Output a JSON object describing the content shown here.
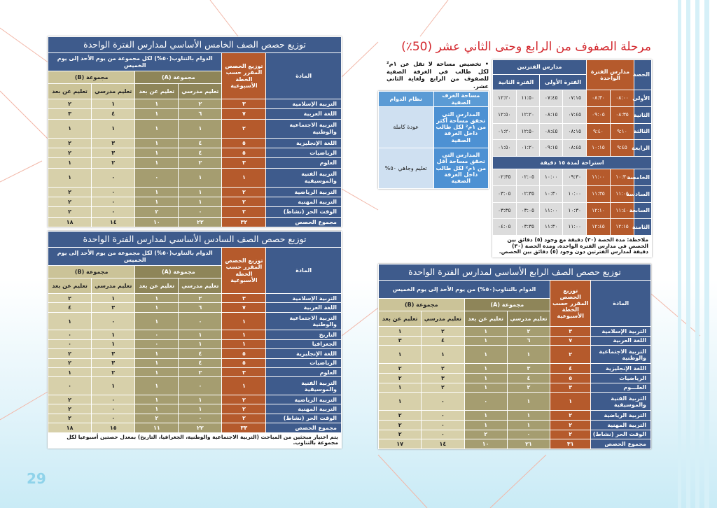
{
  "page": {
    "title": "مرحلة الصفوف من الرابع وحتى الثاني عشر (50٪)",
    "bullet": "تخصيص مساحة لا تقل عن ١م² لكل طالب في الغرفة الصفية للصفوف من الرابع ولغاية الثاني عشر.",
    "page_number": "29"
  },
  "area_table": {
    "headers": [
      "مساحة الغرف الصفية",
      "نظام الدوام"
    ],
    "rows": [
      {
        "area": "المدارس التي تحقق مساحة أكثر من ١م² لكل طالب داخل الغرفة الصفية",
        "system": "عودة كاملة"
      },
      {
        "area": "المدارس التي تحقق مساحة أقل من ١م² لكل طالب داخل الغرفة الصفية",
        "system": "تعليم وجاهي ٥٠%"
      }
    ]
  },
  "schedule": {
    "period_label": "الحصة",
    "single_label": "مدارس الفترة الواحدة",
    "double_label": "مدارس الفترتين",
    "first_label": "الفترة الأولى",
    "second_label": "الفترة الثانية",
    "break_label": "استراحة لمدة ١٥ دقيقة",
    "rows": [
      {
        "name": "الأولى",
        "s": [
          "٠٨:٠٠",
          "٠٨:٣٠"
        ],
        "f": [
          "٠٧:١٥",
          "٠٧:٤٥"
        ],
        "n": [
          "١١:٥٠",
          "١٢:٢٠"
        ]
      },
      {
        "name": "الثانية",
        "s": [
          "٠٨:٣٥",
          "٠٩:٠٥"
        ],
        "f": [
          "٠٧:٤٥",
          "٠٨:١٥"
        ],
        "n": [
          "١٢:٢٠",
          "١٢:٥٠"
        ]
      },
      {
        "name": "الثالثة",
        "s": [
          "٩:١٠",
          "٩:٤٠"
        ],
        "f": [
          "٠٨:١٥",
          "٠٨:٤٥"
        ],
        "n": [
          "١٢:٥٠",
          "٠١:٢٠"
        ]
      },
      {
        "name": "الرابعة",
        "s": [
          "٩:٤٥",
          "١٠:١٥"
        ],
        "f": [
          "٠٨:٤٥",
          "٠٩:١٥"
        ],
        "n": [
          "٠١:٢٠",
          "٠١:٥٠"
        ]
      },
      {
        "name": "الخامسة",
        "s": [
          "١٠:٣٠",
          "١١:٠٠"
        ],
        "f": [
          "٠٩:٣٠",
          "١٠:٠٠"
        ],
        "n": [
          "٠٢:٠٥",
          "٠٢:٣٥"
        ]
      },
      {
        "name": "السادسة",
        "s": [
          "١١:٠٥",
          "١١:٣٥"
        ],
        "f": [
          "١٠:٠٠",
          "١٠:٣٠"
        ],
        "n": [
          "٠٢:٣٥",
          "٠٣:٠٥"
        ]
      },
      {
        "name": "السابعة",
        "s": [
          "١١:٤٠",
          "١٢:١٠"
        ],
        "f": [
          "١٠:٣٠",
          "١١:٠٠"
        ],
        "n": [
          "٠٣:٠٥",
          "٠٣:٣٥"
        ]
      },
      {
        "name": "الثامنة",
        "s": [
          "١٢:١٥",
          "١٢:٤٥"
        ],
        "f": [
          "١١:٠٠",
          "١١:٣٠"
        ],
        "n": [
          "٠٣:٣٥",
          "٠٤:٠٥"
        ]
      }
    ],
    "note": "ملاحظة: مدة الحصة (٣٠) دقيقة مع وجود (٥) دقائق بين الحصص في مدارس الفترة الواحدة. ومدة الحصة (٣٠) دقيقة لمدارس الفترتين دون وجود (٥) دقائق بين الحصص."
  },
  "grade5": {
    "title": "توزيع حصص الصف الخامس الأساسي لمدارس الفترة الواحدة",
    "hours_label": "الدوام بالتناوب(٥٠%) لكل مجموعة من يوم الأحد إلى يوم الخميس",
    "subject_label": "المادة",
    "total_label": "توزيع الحصص المقرر حسب الخطة الأسبوعية",
    "group_a": "مجموعة (A)",
    "group_b": "مجموعة (B)",
    "school_label": "تعليم مدرسي",
    "remote_label": "تعليم عن بعد",
    "rows": [
      [
        "التربية الإسلامية",
        "٣",
        "٢",
        "١",
        "١",
        "٢"
      ],
      [
        "اللغة العربية",
        "٧",
        "٦",
        "١",
        "٤",
        "٣"
      ],
      [
        "التربية الاجتماعية والوطنية",
        "٢",
        "١",
        "١",
        "١",
        "١"
      ],
      [
        "اللغة الإنجليزية",
        "٥",
        "٤",
        "١",
        "٣",
        "٢"
      ],
      [
        "الرياضيات",
        "٥",
        "٤",
        "١",
        "٣",
        "٢"
      ],
      [
        "العلوم",
        "٣",
        "٢",
        "١",
        "٢",
        "١"
      ],
      [
        "التربية الفنية والموسيقية",
        "١",
        "١",
        "٠",
        "٠",
        "١"
      ],
      [
        "التربية الرياضية",
        "٢",
        "١",
        "١",
        "٠",
        "٢"
      ],
      [
        "التربية المهنية",
        "٢",
        "١",
        "١",
        "٠",
        "٢"
      ],
      [
        "الوقت الحر (نشاط)",
        "٢",
        "٠",
        "٢",
        "٠",
        "٢"
      ],
      [
        "مجموع الحصص",
        "٣٢",
        "٢٢",
        "١٠",
        "١٤",
        "١٨"
      ]
    ]
  },
  "grade6": {
    "title": "توزيع حصص الصف السادس الأساسي لمدارس الفترة الواحدة",
    "hours_label": "الدوام بالتناوب(٥٠%) لكل مجموعة من يوم الأحد إلى يوم الخميس",
    "subject_label": "المادة",
    "total_label": "توزيع الحصص المقرر حسب الخطة الأسبوعية",
    "group_a": "مجموعة (A)",
    "group_b": "مجموعة (B)",
    "school_label": "تعليم مدرسي",
    "remote_label": "تعليم عن بعد",
    "rows": [
      [
        "التربية الإسلامية",
        "٣",
        "٢",
        "١",
        "١",
        "٢"
      ],
      [
        "اللغة العربية",
        "٧",
        "٦",
        "١",
        "٣",
        "٤"
      ],
      [
        "التربية الاجتماعية والوطنية",
        "١",
        "٠",
        "١",
        "٠",
        "١"
      ],
      [
        "التاريخ",
        "١",
        "١",
        "٠",
        "١",
        "٠"
      ],
      [
        "الجغرافيا",
        "١",
        "١",
        "٠",
        "١",
        "٠"
      ],
      [
        "اللغة الإنجليزية",
        "٥",
        "٤",
        "١",
        "٣",
        "٢"
      ],
      [
        "الرياضيات",
        "٥",
        "٤",
        "١",
        "٣",
        "٢"
      ],
      [
        "العلوم",
        "٣",
        "٢",
        "١",
        "٢",
        "١"
      ],
      [
        "التربية الفنية والموسيقية",
        "١",
        "٠",
        "١",
        "١",
        "٠"
      ],
      [
        "التربية الرياضية",
        "٢",
        "١",
        "١",
        "٠",
        "٢"
      ],
      [
        "التربية المهنية",
        "٢",
        "١",
        "١",
        "٠",
        "٢"
      ],
      [
        "الوقت الحر (نشاط)",
        "٢",
        "٠",
        "٢",
        "٠",
        "٢"
      ],
      [
        "مجموع الحصص",
        "٣٣",
        "٢٢",
        "١١",
        "١٥",
        "١٨"
      ]
    ],
    "note": "يتم اختيار مبحثين من المباحث (التربية الاجتماعية والوطنية، الجغرافيا، التاريخ) بمعدل حصتين أسبوعيا لكل مجموعة بالتناوب."
  },
  "grade4": {
    "title": "توزيع حصص الصف الرابع الأساسي لمدارس الفترة الواحدة",
    "hours_label": "الدوام بالتناوب(٥٠%) من يوم الأحد إلى يوم الخميس",
    "subject_label": "المادة",
    "total_label": "توزيع الحصص المقرر حسب الخطة الأسبوعية",
    "group_a": "مجموعة (A)",
    "group_b": "مجموعة (B)",
    "school_label": "تعليم مدرسي",
    "remote_label": "تعليم عن بعد",
    "rows": [
      [
        "التربية الإسلامية",
        "٣",
        "٢",
        "١",
        "٢",
        "١"
      ],
      [
        "اللغة العربية",
        "٧",
        "٦",
        "١",
        "٤",
        "٣"
      ],
      [
        "التربية الاجتماعية والوطنية",
        "٢",
        "١",
        "١",
        "١",
        "١"
      ],
      [
        "اللغة الإنجليزية",
        "٤",
        "٣",
        "١",
        "٢",
        "٢"
      ],
      [
        "الرياضيات",
        "٥",
        "٤",
        "١",
        "٣",
        "٢"
      ],
      [
        "العلـــوم",
        "٣",
        "٢",
        "١",
        "٢",
        "١"
      ],
      [
        "التربية الفنية والموسيقية",
        "١",
        "١",
        "٠",
        "٠",
        "١"
      ],
      [
        "التربية الرياضية",
        "٢",
        "١",
        "١",
        "٠",
        "٢"
      ],
      [
        "التربية المهنية",
        "٢",
        "١",
        "١",
        "٠",
        "٢"
      ],
      [
        "الوقت الحر (نشاط)",
        "٢",
        "٠",
        "٢",
        "٠",
        "٢"
      ],
      [
        "مجموع الحصص",
        "٣١",
        "٢١",
        "١٠",
        "١٤",
        "١٧"
      ]
    ]
  }
}
